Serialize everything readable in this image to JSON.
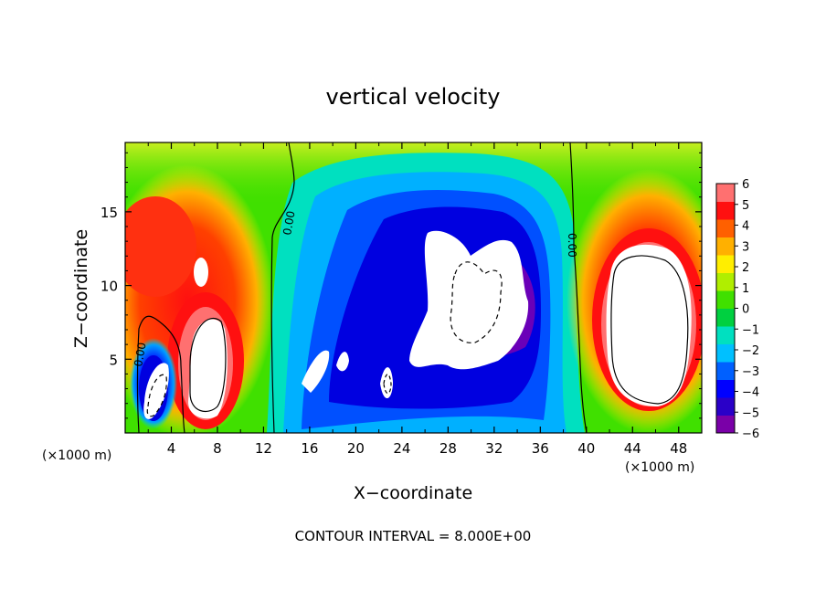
{
  "chart_data": {
    "type": "heatmap",
    "title": "vertical velocity",
    "xlabel": "X−coordinate",
    "ylabel": "Z−coordinate",
    "x_unit_left": "(×1000 m)",
    "x_unit_right": "(×1000 m)",
    "footer": "CONTOUR INTERVAL = 8.000E+00",
    "xlim": [
      0,
      50
    ],
    "ylim": [
      0,
      19.7
    ],
    "x_ticks": [
      "4",
      "8",
      "12",
      "16",
      "20",
      "24",
      "28",
      "32",
      "36",
      "40",
      "44",
      "48"
    ],
    "y_ticks": [
      "5",
      "10",
      "15"
    ],
    "colorbar": {
      "ticks": [
        "6",
        "5",
        "4",
        "3",
        "2",
        "1",
        "0",
        "−1",
        "−2",
        "−3",
        "−4",
        "−5",
        "−6"
      ],
      "range": [
        -6,
        6
      ],
      "colors": [
        "#7a00a8",
        "#2a00c8",
        "#0000ff",
        "#0060ff",
        "#00c0ff",
        "#00e0c0",
        "#00d040",
        "#40e000",
        "#b0ee00",
        "#ffee00",
        "#ffb000",
        "#ff6000",
        "#ff1010",
        "#ff7070"
      ]
    },
    "contour_labels": [
      "0.00",
      "0.00",
      "0.00"
    ]
  }
}
